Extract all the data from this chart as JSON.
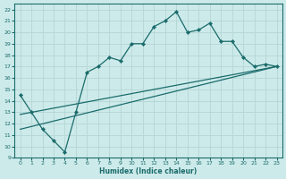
{
  "xlabel": "Humidex (Indice chaleur)",
  "bg_color": "#cdeaea",
  "line_color": "#1a6b6b",
  "grid_color": "#b8d8d8",
  "xlim": [
    -0.5,
    23.5
  ],
  "ylim": [
    9,
    22.5
  ],
  "xticks": [
    0,
    1,
    2,
    3,
    4,
    5,
    6,
    7,
    8,
    9,
    10,
    11,
    12,
    13,
    14,
    15,
    16,
    17,
    18,
    19,
    20,
    21,
    22,
    23
  ],
  "yticks": [
    9,
    10,
    11,
    12,
    13,
    14,
    15,
    16,
    17,
    18,
    19,
    20,
    21,
    22
  ],
  "line1_x": [
    0,
    1,
    2,
    3,
    4,
    5,
    6,
    7,
    8,
    9,
    10,
    11,
    12,
    13,
    14,
    15,
    16,
    17,
    18,
    19,
    20,
    21,
    22,
    23
  ],
  "line1_y": [
    14.5,
    13.0,
    11.5,
    10.5,
    9.5,
    13.0,
    16.5,
    17.0,
    17.8,
    17.5,
    19.0,
    19.0,
    20.5,
    21.0,
    21.8,
    20.0,
    20.2,
    20.8,
    19.2,
    19.2,
    17.8,
    17.0,
    17.2,
    17.0
  ],
  "line2_x": [
    0,
    23
  ],
  "line2_y": [
    12.8,
    17.0
  ],
  "line3_x": [
    0,
    23
  ],
  "line3_y": [
    11.5,
    17.0
  ]
}
